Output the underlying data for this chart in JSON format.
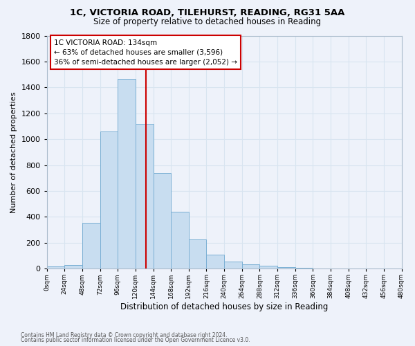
{
  "title1": "1C, VICTORIA ROAD, TILEHURST, READING, RG31 5AA",
  "title2": "Size of property relative to detached houses in Reading",
  "xlabel": "Distribution of detached houses by size in Reading",
  "ylabel": "Number of detached properties",
  "bar_color": "#c8ddf0",
  "bar_edge_color": "#7aafd4",
  "background_color": "#eef2fa",
  "grid_color": "#d8e4f0",
  "bin_edges": [
    0,
    24,
    48,
    72,
    96,
    120,
    144,
    168,
    192,
    216,
    240,
    264,
    288,
    312,
    336,
    360,
    384,
    408,
    432,
    456,
    480
  ],
  "bar_heights": [
    15,
    30,
    355,
    1060,
    1465,
    1120,
    740,
    440,
    225,
    110,
    55,
    35,
    20,
    10,
    5,
    3,
    2,
    1,
    0,
    0
  ],
  "property_size": 134,
  "vline_color": "#cc0000",
  "annotation_line1": "1C VICTORIA ROAD: 134sqm",
  "annotation_line2": "← 63% of detached houses are smaller (3,596)",
  "annotation_line3": "36% of semi-detached houses are larger (2,052) →",
  "annotation_box_edge": "#cc0000",
  "annotation_box_face": "#ffffff",
  "ylim": [
    0,
    1800
  ],
  "yticks": [
    0,
    200,
    400,
    600,
    800,
    1000,
    1200,
    1400,
    1600,
    1800
  ],
  "xtick_labels": [
    "0sqm",
    "24sqm",
    "48sqm",
    "72sqm",
    "96sqm",
    "120sqm",
    "144sqm",
    "168sqm",
    "192sqm",
    "216sqm",
    "240sqm",
    "264sqm",
    "288sqm",
    "312sqm",
    "336sqm",
    "360sqm",
    "384sqm",
    "408sqm",
    "432sqm",
    "456sqm",
    "480sqm"
  ],
  "footer1": "Contains HM Land Registry data © Crown copyright and database right 2024.",
  "footer2": "Contains public sector information licensed under the Open Government Licence v3.0."
}
